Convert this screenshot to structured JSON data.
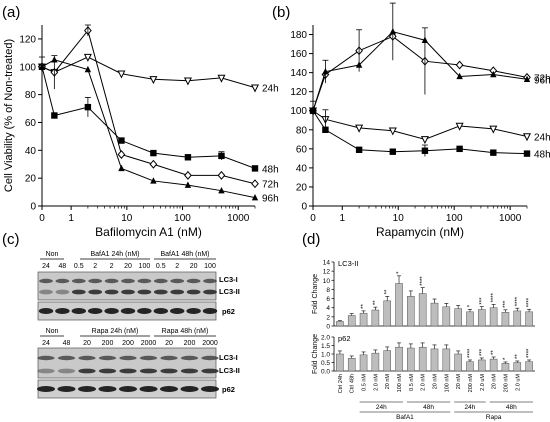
{
  "panel_labels": {
    "a": "(a)",
    "b": "(b)",
    "c": "(c)",
    "d": "(d)"
  },
  "chart_data": [
    {
      "id": "a",
      "type": "line",
      "xscale": "log",
      "xlabel": "Bafilomycin A1 (nM)",
      "ylabel": "Cell Viability (% of Non-treated)",
      "xlim": [
        0,
        2000
      ],
      "ylim": [
        0,
        130
      ],
      "xticks": [
        0,
        1,
        10,
        100,
        1000
      ],
      "yticks": [
        0,
        20,
        40,
        60,
        80,
        100,
        120
      ],
      "x": [
        0,
        0.5,
        2,
        8,
        30,
        125,
        500,
        2000
      ],
      "series": [
        {
          "name": "24h",
          "marker": "triangle-down-open",
          "values": [
            100,
            96,
            107,
            95,
            91,
            90,
            92,
            85
          ]
        },
        {
          "name": "48h",
          "marker": "square",
          "values": [
            100,
            65,
            71,
            47,
            38,
            35,
            36,
            27
          ]
        },
        {
          "name": "72h",
          "marker": "diamond-open",
          "values": [
            100,
            96,
            126,
            37,
            30,
            22,
            22,
            16
          ]
        },
        {
          "name": "96h",
          "marker": "triangle-up",
          "values": [
            100,
            105,
            98,
            27,
            18,
            15,
            11,
            6
          ]
        }
      ]
    },
    {
      "id": "b",
      "type": "line",
      "xscale": "log",
      "xlabel": "Rapamycin (nM)",
      "ylabel": "",
      "xlim": [
        0,
        2000
      ],
      "ylim": [
        0,
        190
      ],
      "xticks": [
        0,
        1,
        10,
        100,
        1000
      ],
      "yticks": [
        0,
        20,
        40,
        60,
        80,
        100,
        120,
        140,
        160,
        180
      ],
      "x": [
        0,
        0.5,
        2,
        8,
        30,
        125,
        500,
        2000
      ],
      "series": [
        {
          "name": "72h",
          "marker": "diamond-open",
          "values": [
            100,
            138,
            163,
            178,
            152,
            148,
            142,
            135
          ]
        },
        {
          "name": "96h",
          "marker": "triangle-up",
          "values": [
            100,
            141,
            148,
            183,
            174,
            136,
            138,
            133
          ]
        },
        {
          "name": "24h",
          "marker": "triangle-down-open",
          "values": [
            100,
            91,
            82,
            79,
            70,
            84,
            81,
            73
          ]
        },
        {
          "name": "48h",
          "marker": "square",
          "values": [
            100,
            80,
            59,
            57,
            58,
            60,
            56,
            55
          ]
        }
      ]
    },
    {
      "id": "d-top",
      "type": "bar",
      "title": "LC3-II",
      "ylabel": "Fold Change",
      "ylim": [
        0,
        14
      ],
      "yticks": [
        0,
        2,
        4,
        6,
        8,
        10,
        12,
        14
      ],
      "values": [
        1.0,
        2.3,
        2.8,
        3.5,
        5.5,
        9.3,
        6.5,
        7.1,
        5.0,
        4.2,
        3.8,
        3.1,
        3.6,
        4.0,
        3.0,
        3.3,
        3.1
      ],
      "stars": [
        "",
        "",
        "**",
        "**",
        "**",
        "*",
        "",
        "****",
        "",
        "",
        "",
        "*",
        "***",
        "****",
        "***",
        "****",
        "****"
      ]
    },
    {
      "id": "d-bottom",
      "type": "bar",
      "title": "p62",
      "ylabel": "Fold Change",
      "ylim": [
        0,
        2.0
      ],
      "yticks": [
        0.0,
        0.5,
        1.0,
        1.5,
        2.0
      ],
      "values": [
        1.0,
        0.75,
        0.95,
        1.05,
        1.2,
        1.4,
        1.35,
        1.4,
        1.3,
        1.3,
        1.0,
        0.55,
        0.65,
        0.7,
        0.45,
        0.5,
        0.55
      ],
      "stars": [
        "",
        "",
        "",
        "",
        "",
        "",
        "",
        "",
        "",
        "",
        "",
        "****",
        "***",
        "**",
        "*",
        "**",
        "****"
      ],
      "categories": [
        "Ctrl 24h",
        "Ctrl 48h",
        "0.5 nM",
        "2.0 nM",
        "20 nM",
        "100 nM",
        "0.5 nM",
        "2.0 nM",
        "20 nM",
        "100 nM",
        "20 nM",
        "200 nM",
        "2.0 uM",
        "20 nM",
        "200 nM",
        "2.0 uM",
        ""
      ],
      "group_labels": {
        "t1": "24h",
        "t2": "48h",
        "t3": "24h",
        "t4": "48h",
        "drug1": "BafA1",
        "drug2": "Rapa"
      }
    }
  ],
  "blots": {
    "top": {
      "group_non": "Non",
      "group_1": "BafA1 24h (nM)",
      "group_2": "BafA1 48h (nM)",
      "lanes": [
        "24",
        "48",
        "0.5",
        "2",
        "2",
        "20",
        "100",
        "0.5",
        "2",
        "20",
        "100"
      ],
      "band_lc3i": "LC3-I",
      "band_lc3ii": "LC3-II",
      "band_p62": "p62"
    },
    "bottom": {
      "group_non": "Non",
      "group_1": "Rapa 24h (nM)",
      "group_2": "Rapa 48h (nM)",
      "lanes": [
        "24",
        "48",
        "20",
        "200",
        "200",
        "2000",
        "20",
        "200",
        "2000"
      ],
      "band_lc3i": "LC3-I",
      "band_lc3ii": "LC3-II",
      "band_p62": "p62"
    }
  }
}
